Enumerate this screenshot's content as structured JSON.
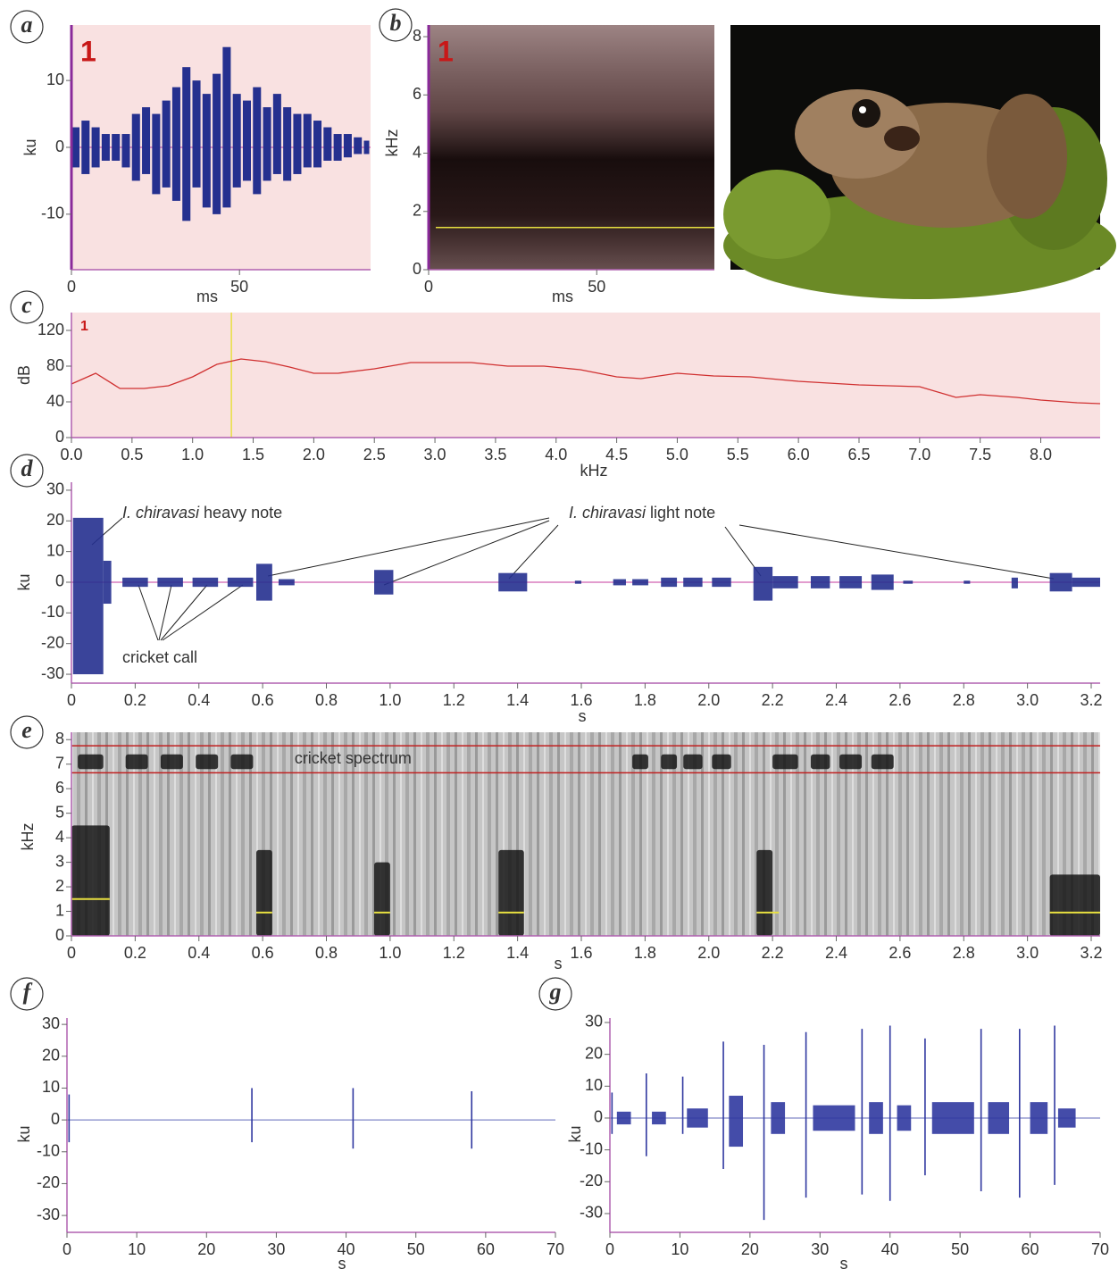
{
  "chart_data": [
    {
      "type": "waveform",
      "panel": "a",
      "marker": "1",
      "xlabel": "ms",
      "ylabel": "ku",
      "xlim": [
        0,
        89
      ],
      "ylim": [
        -18.3,
        18.3
      ],
      "xticks": [
        0,
        50
      ],
      "yticks": [
        -10,
        0,
        10
      ],
      "color": "#25308f",
      "background": "#f9e1e1",
      "x": [
        0,
        3,
        6,
        9,
        12,
        15,
        18,
        21,
        24,
        27,
        30,
        33,
        36,
        39,
        42,
        45,
        48,
        51,
        54,
        57,
        60,
        63,
        66,
        69,
        72,
        75,
        78,
        81,
        84,
        87
      ],
      "upper": [
        3,
        4,
        3,
        2,
        2,
        2,
        5,
        6,
        5,
        7,
        9,
        12,
        10,
        8,
        11,
        15,
        8,
        7,
        9,
        6,
        8,
        6,
        5,
        5,
        4,
        3,
        2,
        2,
        1.5,
        1
      ],
      "lower": [
        -3,
        -4,
        -3,
        -2,
        -2,
        -3,
        -5,
        -4,
        -7,
        -6,
        -8,
        -11,
        -6,
        -9,
        -10,
        -9,
        -6,
        -5,
        -7,
        -5,
        -4,
        -5,
        -4,
        -3,
        -3,
        -2,
        -2,
        -1.5,
        -1,
        -1
      ]
    },
    {
      "type": "spectrogram",
      "panel": "b",
      "marker": "1",
      "xlabel": "ms",
      "ylabel": "kHz",
      "xlim": [
        0,
        85
      ],
      "ylim": [
        0,
        8.4
      ],
      "xticks": [
        0,
        50
      ],
      "yticks": [
        0,
        2,
        4,
        6,
        8
      ],
      "background": "#3b2828",
      "marker_line": 1.45,
      "line_color": "#e8e040"
    },
    {
      "type": "line",
      "panel": "c",
      "marker": "1",
      "xlabel": "kHz",
      "ylabel": "dB",
      "xlim": [
        0,
        8.49
      ],
      "ylim": [
        0,
        140
      ],
      "xticks": [
        {
          "value": 0,
          "label": "0.0"
        },
        0.5,
        {
          "value": 1,
          "label": "1.0"
        },
        1.5,
        {
          "value": 2,
          "label": "2.0"
        },
        2.5,
        {
          "value": 3,
          "label": "3.0"
        },
        3.5,
        {
          "value": 4,
          "label": "4.0"
        },
        4.5,
        {
          "value": 5,
          "label": "5.0"
        },
        5.5,
        {
          "value": 6,
          "label": "6.0"
        },
        6.5,
        {
          "value": 7,
          "label": "7.0"
        },
        7.5,
        {
          "value": 8,
          "label": "8.0"
        }
      ],
      "yticks": [
        0,
        40,
        80,
        120
      ],
      "color": "#d03030",
      "background": "#f9e1e1",
      "marker_x": 1.32,
      "marker_color": "#e8e040",
      "x": [
        0,
        0.2,
        0.4,
        0.6,
        0.8,
        1.0,
        1.2,
        1.4,
        1.6,
        1.8,
        2.0,
        2.2,
        2.5,
        2.8,
        3.0,
        3.3,
        3.6,
        3.9,
        4.2,
        4.5,
        4.7,
        5.0,
        5.3,
        5.6,
        6.0,
        6.5,
        7.0,
        7.3,
        7.5,
        7.8,
        8.0,
        8.3,
        8.49
      ],
      "values": [
        60,
        72,
        55,
        55,
        58,
        68,
        82,
        88,
        85,
        79,
        72,
        72,
        77,
        84,
        84,
        84,
        80,
        80,
        76,
        68,
        66,
        72,
        69,
        68,
        63,
        59,
        57,
        45,
        48,
        45,
        42,
        39,
        38
      ]
    },
    {
      "type": "waveform",
      "panel": "d",
      "ylabel": "ku",
      "xlabel": "s",
      "xlim": [
        0,
        3.228
      ],
      "ylim": [
        -32.9,
        32.6
      ],
      "xticks": [
        0,
        0.2,
        0.4,
        0.6,
        0.8,
        {
          "value": 1,
          "label": "1.0"
        },
        1.2,
        1.4,
        1.6,
        1.8,
        {
          "value": 2,
          "label": "2.0"
        },
        2.2,
        2.4,
        2.6,
        2.8,
        {
          "value": 3,
          "label": "3.0"
        },
        3.2
      ],
      "yticks": [
        -30,
        -20,
        -10,
        0,
        10,
        20,
        30
      ],
      "color": "#25308f",
      "annotations": {
        "heavy": {
          "species": "I. chiravasi",
          "text": "heavy note"
        },
        "light": {
          "species": "I. chiravasi",
          "text": "light note"
        },
        "cricket": "cricket call"
      },
      "bursts": [
        {
          "start": 0.005,
          "end": 0.1,
          "max": 21,
          "min": -30
        },
        {
          "start": 0.1,
          "end": 0.125,
          "max": 7,
          "min": -7
        },
        {
          "start": 0.16,
          "end": 0.24,
          "max": 1.5,
          "min": -1.5
        },
        {
          "start": 0.27,
          "end": 0.35,
          "max": 1.5,
          "min": -1.5
        },
        {
          "start": 0.38,
          "end": 0.46,
          "max": 1.5,
          "min": -1.5
        },
        {
          "start": 0.49,
          "end": 0.57,
          "max": 1.5,
          "min": -1.5
        },
        {
          "start": 0.58,
          "end": 0.63,
          "max": 6,
          "min": -6
        },
        {
          "start": 0.65,
          "end": 0.7,
          "max": 1,
          "min": -1
        },
        {
          "start": 0.95,
          "end": 1.01,
          "max": 4,
          "min": -4
        },
        {
          "start": 1.34,
          "end": 1.43,
          "max": 3,
          "min": -3
        },
        {
          "start": 1.58,
          "end": 1.6,
          "max": 0.5,
          "min": -0.5
        },
        {
          "start": 1.7,
          "end": 1.74,
          "max": 1,
          "min": -1
        },
        {
          "start": 1.76,
          "end": 1.81,
          "max": 1,
          "min": -1
        },
        {
          "start": 1.85,
          "end": 1.9,
          "max": 1.5,
          "min": -1.5
        },
        {
          "start": 1.92,
          "end": 1.98,
          "max": 1.5,
          "min": -1.5
        },
        {
          "start": 2.01,
          "end": 2.07,
          "max": 1.5,
          "min": -1.5
        },
        {
          "start": 2.14,
          "end": 2.2,
          "max": 5,
          "min": -6
        },
        {
          "start": 2.2,
          "end": 2.28,
          "max": 2,
          "min": -2
        },
        {
          "start": 2.32,
          "end": 2.38,
          "max": 2,
          "min": -2
        },
        {
          "start": 2.41,
          "end": 2.48,
          "max": 2,
          "min": -2
        },
        {
          "start": 2.51,
          "end": 2.58,
          "max": 2.5,
          "min": -2.5
        },
        {
          "start": 2.61,
          "end": 2.64,
          "max": 0.5,
          "min": -0.5
        },
        {
          "start": 2.8,
          "end": 2.82,
          "max": 0.5,
          "min": -0.5
        },
        {
          "start": 2.95,
          "end": 2.97,
          "max": 1.5,
          "min": -2
        },
        {
          "start": 3.07,
          "end": 3.14,
          "max": 3,
          "min": -3
        },
        {
          "start": 3.14,
          "end": 3.228,
          "max": 1.5,
          "min": -1.5
        }
      ]
    },
    {
      "type": "spectrogram",
      "panel": "e",
      "ylabel": "kHz",
      "xlabel": "s",
      "xlim": [
        0,
        3.228
      ],
      "ylim": [
        0,
        8.3
      ],
      "xticks": [
        0,
        0.2,
        0.4,
        0.6,
        0.8,
        {
          "value": 1,
          "label": "1.0"
        },
        1.2,
        1.4,
        1.6,
        1.8,
        {
          "value": 2,
          "label": "2.0"
        },
        2.2,
        2.4,
        2.6,
        2.8,
        {
          "value": 3,
          "label": "3.0"
        },
        3.2
      ],
      "yticks": [
        0,
        1,
        2,
        3,
        4,
        5,
        6,
        7,
        8
      ],
      "background": "#b9b9b9",
      "dark_color": "#161616",
      "band": [
        6.65,
        7.75
      ],
      "band_color": "#c02020",
      "annotation": "cricket spectrum",
      "line_color": "#e8e040",
      "dark_regions": [
        {
          "x": [
            0,
            0.12
          ],
          "y": [
            0,
            4.5
          ]
        },
        {
          "x": [
            0.58,
            0.63
          ],
          "y": [
            0,
            3.5
          ]
        },
        {
          "x": [
            0.95,
            1.0
          ],
          "y": [
            0,
            3
          ]
        },
        {
          "x": [
            1.34,
            1.42
          ],
          "y": [
            0,
            3.5
          ]
        },
        {
          "x": [
            2.15,
            2.2
          ],
          "y": [
            0,
            3.5
          ]
        },
        {
          "x": [
            3.07,
            3.228
          ],
          "y": [
            0,
            2.5
          ]
        },
        {
          "x": [
            0.02,
            0.1
          ],
          "y": [
            6.8,
            7.4
          ]
        },
        {
          "x": [
            0.17,
            0.24
          ],
          "y": [
            6.8,
            7.4
          ]
        },
        {
          "x": [
            0.28,
            0.35
          ],
          "y": [
            6.8,
            7.4
          ]
        },
        {
          "x": [
            0.39,
            0.46
          ],
          "y": [
            6.8,
            7.4
          ]
        },
        {
          "x": [
            0.5,
            0.57
          ],
          "y": [
            6.8,
            7.4
          ]
        },
        {
          "x": [
            1.76,
            1.81
          ],
          "y": [
            6.8,
            7.4
          ]
        },
        {
          "x": [
            1.85,
            1.9
          ],
          "y": [
            6.8,
            7.4
          ]
        },
        {
          "x": [
            1.92,
            1.98
          ],
          "y": [
            6.8,
            7.4
          ]
        },
        {
          "x": [
            2.01,
            2.07
          ],
          "y": [
            6.8,
            7.4
          ]
        },
        {
          "x": [
            2.2,
            2.28
          ],
          "y": [
            6.8,
            7.4
          ]
        },
        {
          "x": [
            2.32,
            2.38
          ],
          "y": [
            6.8,
            7.4
          ]
        },
        {
          "x": [
            2.41,
            2.48
          ],
          "y": [
            6.8,
            7.4
          ]
        },
        {
          "x": [
            2.51,
            2.58
          ],
          "y": [
            6.8,
            7.4
          ]
        }
      ],
      "yellow_marks": [
        {
          "x": [
            0,
            0.12
          ],
          "y": 1.5
        },
        {
          "x": [
            0.58,
            0.63
          ],
          "y": 0.95
        },
        {
          "x": [
            0.95,
            1.0
          ],
          "y": 0.95
        },
        {
          "x": [
            1.34,
            1.42
          ],
          "y": 0.95
        },
        {
          "x": [
            2.15,
            2.22
          ],
          "y": 0.95
        },
        {
          "x": [
            3.07,
            3.228
          ],
          "y": 0.95
        }
      ]
    },
    {
      "type": "waveform",
      "panel": "f",
      "ylabel": "ku",
      "xlabel": "s",
      "xlim": [
        0,
        70
      ],
      "ylim": [
        -35.3,
        32
      ],
      "xticks": [
        0,
        10,
        20,
        30,
        40,
        50,
        60,
        70
      ],
      "yticks": [
        -30,
        -20,
        -10,
        0,
        10,
        20,
        30
      ],
      "color": "#3038a0",
      "spikes": [
        {
          "x": 0.3,
          "max": 8,
          "min": -7
        },
        {
          "x": 26.5,
          "max": 10,
          "min": -7
        },
        {
          "x": 41,
          "max": 10,
          "min": -9
        },
        {
          "x": 58,
          "max": 9,
          "min": -9
        }
      ]
    },
    {
      "type": "waveform",
      "panel": "g",
      "ylabel": "ku",
      "xlabel": "s",
      "xlim": [
        0,
        70
      ],
      "ylim": [
        -35.9,
        31.4
      ],
      "xticks": [
        0,
        10,
        20,
        30,
        40,
        50,
        60,
        70
      ],
      "yticks": [
        -30,
        -20,
        -10,
        0,
        10,
        20,
        30
      ],
      "color": "#3038a0",
      "spikes": [
        {
          "x": 0.3,
          "max": 8,
          "min": -5
        },
        {
          "x": 5.2,
          "max": 14,
          "min": -12
        },
        {
          "x": 10.4,
          "max": 13,
          "min": -5
        },
        {
          "x": 16.2,
          "max": 24,
          "min": -16
        },
        {
          "x": 22,
          "max": 23,
          "min": -32
        },
        {
          "x": 28,
          "max": 27,
          "min": -25
        },
        {
          "x": 36,
          "max": 28,
          "min": -24
        },
        {
          "x": 40,
          "max": 29,
          "min": -26
        },
        {
          "x": 45,
          "max": 25,
          "min": -18
        },
        {
          "x": 53,
          "max": 28,
          "min": -23
        },
        {
          "x": 58.5,
          "max": 28,
          "min": -25
        },
        {
          "x": 63.5,
          "max": 29,
          "min": -21
        }
      ],
      "bursts": [
        {
          "start": 1,
          "end": 3,
          "max": 2,
          "min": -2
        },
        {
          "start": 6,
          "end": 8,
          "max": 2,
          "min": -2
        },
        {
          "start": 11,
          "end": 14,
          "max": 3,
          "min": -3
        },
        {
          "start": 17,
          "end": 19,
          "max": 7,
          "min": -9
        },
        {
          "start": 23,
          "end": 25,
          "max": 5,
          "min": -5
        },
        {
          "start": 29,
          "end": 35,
          "max": 4,
          "min": -4
        },
        {
          "start": 37,
          "end": 39,
          "max": 5,
          "min": -5
        },
        {
          "start": 41,
          "end": 43,
          "max": 4,
          "min": -4
        },
        {
          "start": 46,
          "end": 52,
          "max": 5,
          "min": -5
        },
        {
          "start": 54,
          "end": 57,
          "max": 5,
          "min": -5
        },
        {
          "start": 60,
          "end": 62.5,
          "max": 5,
          "min": -5
        },
        {
          "start": 64,
          "end": 66.5,
          "max": 3,
          "min": -3
        }
      ]
    }
  ]
}
